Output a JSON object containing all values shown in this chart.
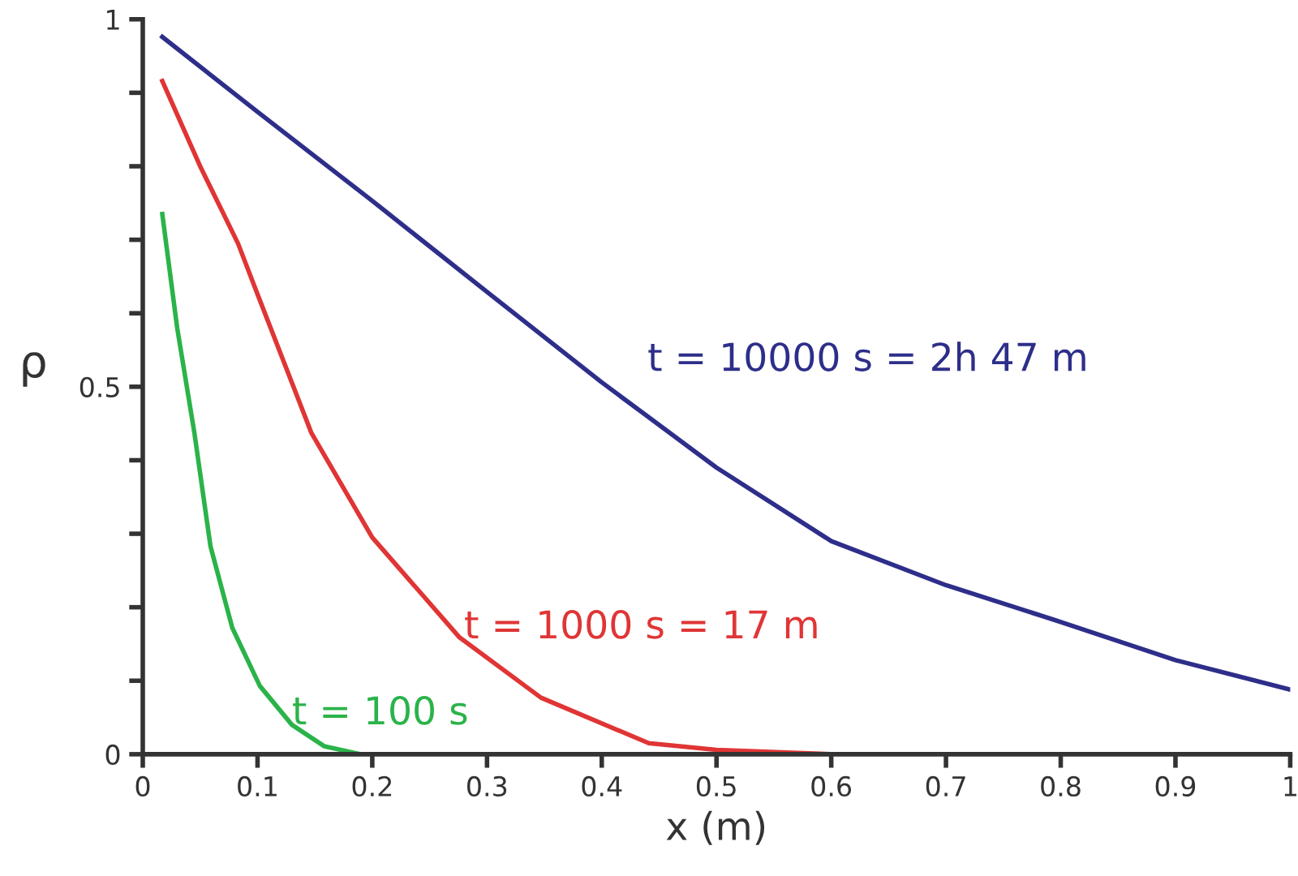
{
  "chart_data": {
    "type": "line",
    "xlabel": "x (m)",
    "ylabel": "ρ",
    "xlim": [
      0,
      1
    ],
    "ylim": [
      0,
      1
    ],
    "xticks": [
      0,
      0.1,
      0.2,
      0.3,
      0.4,
      0.5,
      0.6,
      0.7,
      0.8,
      0.9,
      1
    ],
    "yticks": [
      0,
      {
        "value": 0.1,
        "label": null
      },
      {
        "value": 0.2,
        "label": null
      },
      {
        "value": 0.3,
        "label": null
      },
      {
        "value": 0.4,
        "label": null
      },
      0.5,
      {
        "value": 0.6,
        "label": null
      },
      {
        "value": 0.7,
        "label": null
      },
      {
        "value": 0.8,
        "label": null
      },
      {
        "value": 0.9,
        "label": null
      },
      1
    ],
    "grid": false,
    "legend": false,
    "marker": "none",
    "line_style": "solid",
    "series": [
      {
        "name": "t = 10000 s = 2h 47 m",
        "color": "#2e2e8a",
        "x": [
          0.017,
          0.1,
          0.2,
          0.3,
          0.4,
          0.5,
          0.6,
          0.7,
          0.8,
          0.9,
          1.0
        ],
        "values": [
          0.976,
          0.874,
          0.753,
          0.629,
          0.506,
          0.39,
          0.29,
          0.23,
          0.18,
          0.128,
          0.088
        ]
      },
      {
        "name": "t = 1000 s = 17 m",
        "color": "#e03535",
        "x": [
          0.017,
          0.05,
          0.083,
          0.1,
          0.147,
          0.2,
          0.276,
          0.347,
          0.441,
          0.5,
          0.6,
          0.8,
          1.0
        ],
        "values": [
          0.916,
          0.8,
          0.695,
          0.626,
          0.437,
          0.295,
          0.159,
          0.077,
          0.015,
          0.006,
          0.0,
          0.0,
          0.0
        ]
      },
      {
        "name": "t = 100 s",
        "color": "#2bb34a",
        "x": [
          0.017,
          0.03,
          0.045,
          0.059,
          0.078,
          0.102,
          0.13,
          0.158,
          0.19,
          0.3,
          0.4
        ],
        "values": [
          0.735,
          0.58,
          0.437,
          0.283,
          0.172,
          0.093,
          0.04,
          0.011,
          0.0,
          0.0,
          0.0
        ]
      }
    ]
  }
}
